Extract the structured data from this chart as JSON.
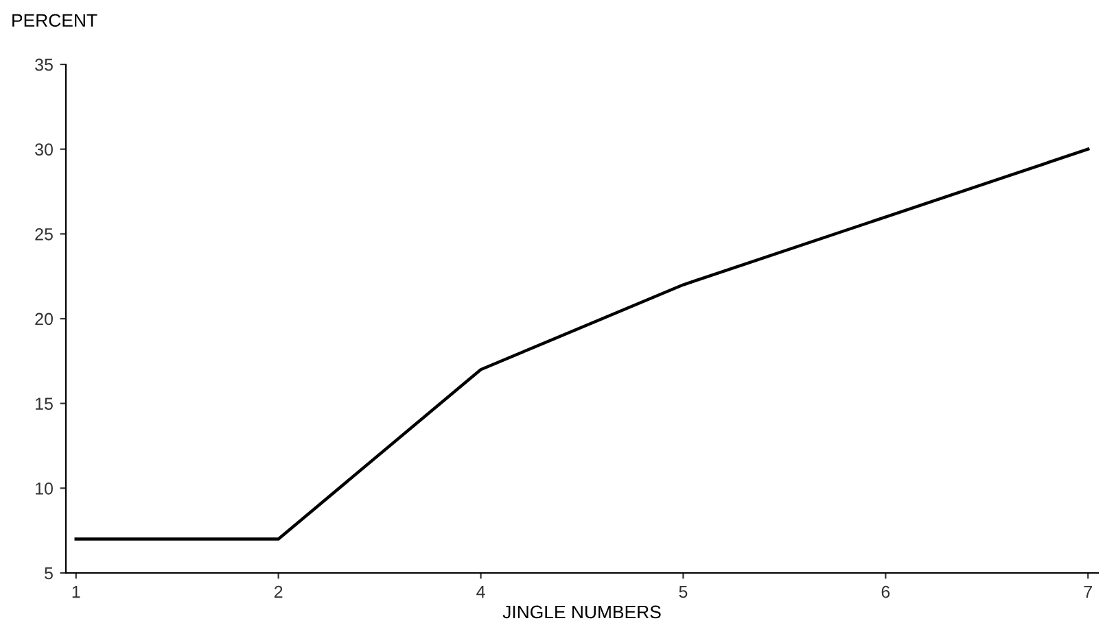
{
  "chart_data": {
    "type": "line",
    "ylabel": "PERCENT",
    "xlabel": "JINGLE NUMBERS",
    "categories": [
      "1",
      "2",
      "4",
      "5",
      "6",
      "7"
    ],
    "series": [
      {
        "color": "#000000",
        "values": [
          7,
          7,
          17,
          22,
          26,
          30
        ]
      }
    ],
    "ylim": [
      5,
      35
    ],
    "yticks": [
      5,
      10,
      15,
      20,
      25,
      30,
      35
    ],
    "grid": false,
    "legend": false,
    "marker": "none",
    "line_style": "solid"
  }
}
